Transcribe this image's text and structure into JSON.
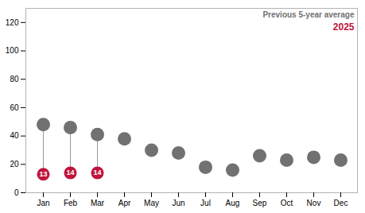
{
  "chart_data": {
    "type": "dot",
    "categories": [
      "Jan",
      "Feb",
      "Mar",
      "Apr",
      "May",
      "Jun",
      "Jul",
      "Aug",
      "Sep",
      "Oct",
      "Nov",
      "Dec"
    ],
    "series": [
      {
        "name": "Previous 5-year average",
        "color": "#717171",
        "values": [
          48,
          46,
          41,
          38,
          30,
          28,
          18,
          16,
          26,
          23,
          25,
          23
        ]
      },
      {
        "name": "2025",
        "color": "#c0143c",
        "data_labels": true,
        "values": [
          13,
          14,
          14,
          null,
          null,
          null,
          null,
          null,
          null,
          null,
          null,
          null
        ]
      }
    ],
    "ylim": [
      0,
      130
    ],
    "yticks": [
      0,
      20,
      40,
      60,
      80,
      100,
      120
    ],
    "grid": false,
    "legend": "top-right"
  }
}
